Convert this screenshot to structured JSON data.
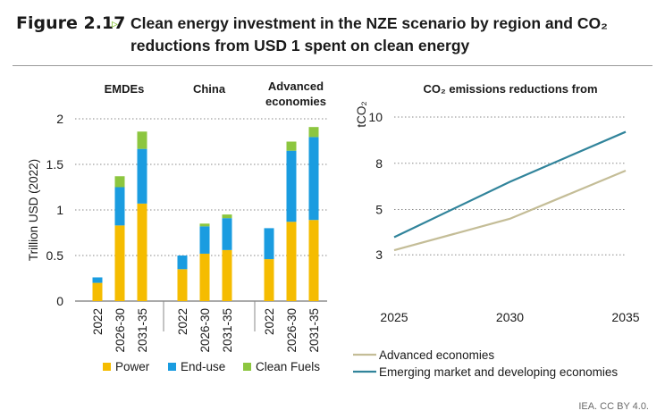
{
  "figure": {
    "label": "Figure 2.17",
    "arrow": "▹",
    "title": "Clean energy investment in the NZE scenario by region and CO₂ reductions from USD 1 spent on clean energy"
  },
  "credit": "IEA. CC BY 4.0.",
  "colors": {
    "power": "#f5bc00",
    "enduse": "#1a9ce0",
    "cleanfuels": "#8cc63f",
    "advanced": "#c4bd97",
    "emde": "#31849b"
  },
  "chart_data": [
    {
      "type": "bar",
      "stacked": true,
      "ylabel": "Trillion USD (2022)",
      "ylim": [
        0,
        2
      ],
      "yticks": [
        "0",
        "0.5",
        "1",
        "1.5",
        "2"
      ],
      "grid": "dotted horizontal",
      "legend_position": "bottom",
      "groups": [
        "EMDEs",
        "China",
        "Advanced economies"
      ],
      "categories": [
        "2022",
        "2026-30",
        "2031-35"
      ],
      "series": [
        {
          "name": "Power",
          "values": [
            [
              0.2,
              0.83,
              1.07
            ],
            [
              0.35,
              0.52,
              0.56
            ],
            [
              0.46,
              0.87,
              0.89
            ]
          ]
        },
        {
          "name": "End-use",
          "values": [
            [
              0.06,
              0.42,
              0.6
            ],
            [
              0.15,
              0.3,
              0.35
            ],
            [
              0.34,
              0.78,
              0.91
            ]
          ]
        },
        {
          "name": "Clean Fuels",
          "values": [
            [
              0.0,
              0.12,
              0.19
            ],
            [
              0.0,
              0.03,
              0.04
            ],
            [
              0.0,
              0.1,
              0.11
            ]
          ]
        }
      ]
    },
    {
      "type": "line",
      "title": "CO₂ emissions reductions from",
      "ylabel": "tCO₂",
      "ylim": [
        0,
        10
      ],
      "yticks": [
        "3",
        "5",
        "8",
        "10"
      ],
      "x": [
        2025,
        2030,
        2035
      ],
      "xticks": [
        "2025",
        "2030",
        "2035"
      ],
      "grid": "dotted horizontal",
      "legend_position": "bottom",
      "series": [
        {
          "name": "Advanced economies",
          "values": [
            2.8,
            4.5,
            7.1
          ]
        },
        {
          "name": "Emerging market and developing economies",
          "values": [
            3.5,
            6.5,
            9.2
          ]
        }
      ]
    }
  ]
}
